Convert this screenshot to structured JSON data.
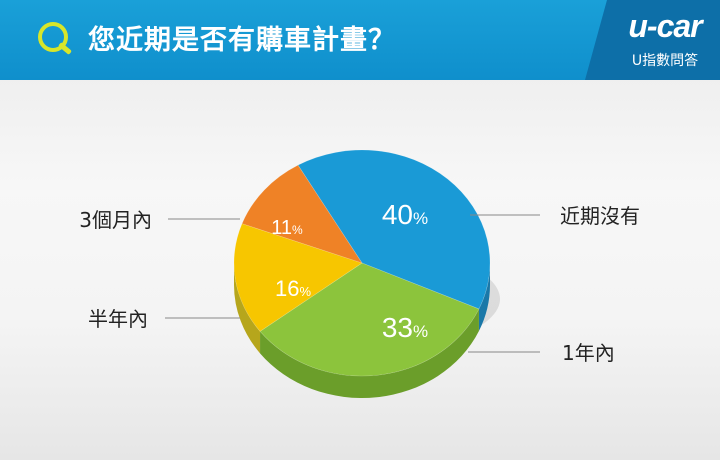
{
  "header": {
    "q_icon": "q-letter-icon",
    "question": "您近期是否有購車計畫？",
    "brand_logo": "u-car",
    "brand_sub": "U指數問答",
    "colors": {
      "bar": "#1aa0d8",
      "brand_bg": "#0d6fa8",
      "accent": "#d7e62a"
    }
  },
  "chart_data": {
    "type": "pie",
    "slices": [
      {
        "label": "近期沒有",
        "value": 40,
        "value_label": "40%",
        "color": "#1a9ad6",
        "side_color": "#1a78a8"
      },
      {
        "label": "1年內",
        "value": 33,
        "value_label": "33%",
        "color": "#8cc43c",
        "side_color": "#6b9e2a"
      },
      {
        "label": "半年內",
        "value": 16,
        "value_label": "16%",
        "color": "#f7c600",
        "side_color": "#b6a61c"
      },
      {
        "label": "3個月內",
        "value": 11,
        "value_label": "11%",
        "color": "#ef8226",
        "side_color": "#b4641a"
      }
    ],
    "style": "3d"
  }
}
